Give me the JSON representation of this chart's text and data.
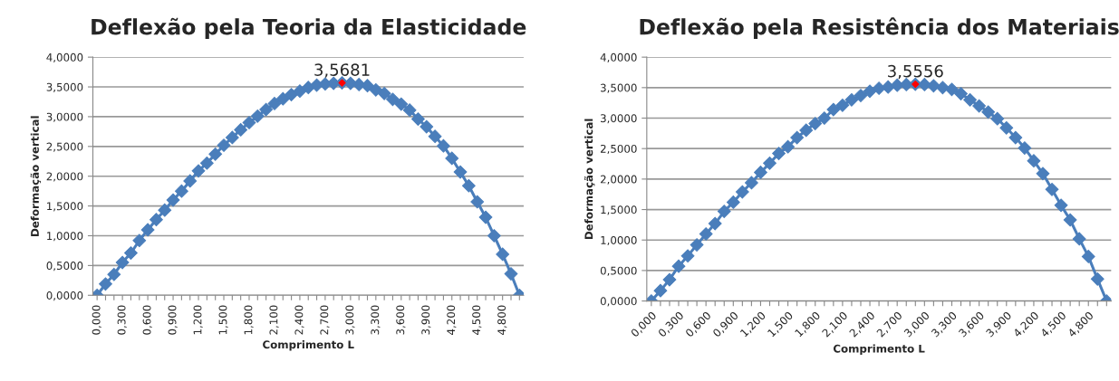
{
  "chart_data": [
    {
      "type": "line",
      "title": "Deflexão pela Teoria da Elasticidade",
      "xlabel": "Comprimento L",
      "ylabel": "Deformação vertical",
      "categories": [
        "0,000",
        null,
        null,
        "0,300",
        null,
        null,
        "0,600",
        null,
        null,
        "0,900",
        null,
        null,
        "1,200",
        null,
        null,
        "1,500",
        null,
        null,
        "1,800",
        null,
        null,
        "2,100",
        null,
        null,
        "2,400",
        null,
        null,
        "2,700",
        null,
        null,
        "3,000",
        null,
        null,
        "3,300",
        null,
        null,
        "3,600",
        null,
        null,
        "3,900",
        null,
        null,
        "4,200",
        null,
        null,
        "4,500",
        null,
        null,
        "4,800",
        null,
        null
      ],
      "series": [
        {
          "color": "#4a7ebb",
          "values": [
            0,
            0.19,
            0.35,
            0.55,
            0.71,
            0.92,
            1.1,
            1.27,
            1.43,
            1.6,
            1.75,
            1.92,
            2.09,
            2.22,
            2.37,
            2.52,
            2.65,
            2.78,
            2.9,
            3.01,
            3.12,
            3.22,
            3.3,
            3.37,
            3.43,
            3.49,
            3.53,
            3.55,
            3.56,
            3.5681,
            3.56,
            3.54,
            3.52,
            3.45,
            3.39,
            3.29,
            3.21,
            3.11,
            2.96,
            2.83,
            2.67,
            2.51,
            2.3,
            2.07,
            1.84,
            1.57,
            1.31,
            1.0,
            0.69,
            0.36,
            0
          ]
        },
        {
          "type": "scatter",
          "color": "#ff0000",
          "values": [
            null,
            null,
            null,
            null,
            null,
            null,
            null,
            null,
            null,
            null,
            null,
            null,
            null,
            null,
            null,
            null,
            null,
            null,
            null,
            null,
            null,
            null,
            null,
            null,
            null,
            null,
            null,
            null,
            null,
            3.5681,
            null,
            null,
            null,
            null,
            null,
            null,
            null,
            null,
            null,
            null,
            null,
            null,
            null,
            null,
            null,
            null,
            null,
            null,
            null,
            null,
            null
          ],
          "value_labels": [
            null,
            null,
            null,
            null,
            null,
            null,
            null,
            null,
            null,
            null,
            null,
            null,
            null,
            null,
            null,
            null,
            null,
            null,
            null,
            null,
            null,
            null,
            null,
            null,
            null,
            null,
            null,
            null,
            null,
            "3,5681",
            null,
            null,
            null,
            null,
            null,
            null,
            null,
            null,
            null,
            null,
            null,
            null,
            null,
            null,
            null,
            null,
            null,
            null,
            null,
            null,
            null
          ]
        }
      ],
      "ylim": [
        0,
        4
      ],
      "yticks": [
        {
          "value": 0,
          "label": "0,0000"
        },
        {
          "value": 0.5,
          "label": "0,5000"
        },
        {
          "value": 1,
          "label": "1,0000"
        },
        {
          "value": 1.5,
          "label": "1,5000"
        },
        {
          "value": 2,
          "label": "2,0000"
        },
        {
          "value": 2.5,
          "label": "2,5000"
        },
        {
          "value": 3,
          "label": "3,0000"
        },
        {
          "value": 3.5,
          "label": "3,5000"
        },
        {
          "value": 4,
          "label": "4,0000"
        }
      ],
      "grid": "y",
      "marker": "diamond",
      "line_style": "solid"
    },
    {
      "type": "line",
      "title": "Deflexão pela Resistência dos Materiais",
      "xlabel": "Comprimento L",
      "ylabel": "Deformação vertical",
      "categories": [
        "0,000",
        null,
        null,
        "0,300",
        null,
        null,
        "0,600",
        null,
        null,
        "0,900",
        null,
        null,
        "1,200",
        null,
        null,
        "1,500",
        null,
        null,
        "1,800",
        null,
        null,
        "2,100",
        null,
        null,
        "2,400",
        null,
        null,
        "2,700",
        null,
        null,
        "3,000",
        null,
        null,
        "3,300",
        null,
        null,
        "3,600",
        null,
        null,
        "3,900",
        null,
        null,
        "4,200",
        null,
        null,
        "4,500",
        null,
        null,
        "4,800",
        null,
        null
      ],
      "series": [
        {
          "color": "#4a7ebb",
          "values": [
            0,
            0.17,
            0.35,
            0.57,
            0.74,
            0.92,
            1.1,
            1.27,
            1.47,
            1.62,
            1.79,
            1.94,
            2.11,
            2.26,
            2.42,
            2.53,
            2.68,
            2.8,
            2.91,
            3.0,
            3.14,
            3.21,
            3.3,
            3.37,
            3.44,
            3.49,
            3.51,
            3.54,
            3.55,
            3.5556,
            3.55,
            3.53,
            3.5,
            3.47,
            3.4,
            3.3,
            3.2,
            3.1,
            2.99,
            2.84,
            2.68,
            2.51,
            2.3,
            2.09,
            1.83,
            1.57,
            1.33,
            1.02,
            0.73,
            0.36,
            0
          ]
        },
        {
          "type": "scatter",
          "color": "#ff0000",
          "values": [
            null,
            null,
            null,
            null,
            null,
            null,
            null,
            null,
            null,
            null,
            null,
            null,
            null,
            null,
            null,
            null,
            null,
            null,
            null,
            null,
            null,
            null,
            null,
            null,
            null,
            null,
            null,
            null,
            null,
            3.5556,
            null,
            null,
            null,
            null,
            null,
            null,
            null,
            null,
            null,
            null,
            null,
            null,
            null,
            null,
            null,
            null,
            null,
            null,
            null,
            null,
            null
          ],
          "value_labels": [
            null,
            null,
            null,
            null,
            null,
            null,
            null,
            null,
            null,
            null,
            null,
            null,
            null,
            null,
            null,
            null,
            null,
            null,
            null,
            null,
            null,
            null,
            null,
            null,
            null,
            null,
            null,
            null,
            null,
            "3,5556",
            null,
            null,
            null,
            null,
            null,
            null,
            null,
            null,
            null,
            null,
            null,
            null,
            null,
            null,
            null,
            null,
            null,
            null,
            null,
            null,
            null
          ]
        }
      ],
      "ylim": [
        0,
        4
      ],
      "yticks": [
        {
          "value": 0,
          "label": "0,0000"
        },
        {
          "value": 0.5,
          "label": "0,5000"
        },
        {
          "value": 1,
          "label": "1,0000"
        },
        {
          "value": 1.5,
          "label": "1,5000"
        },
        {
          "value": 2,
          "label": "2,0000"
        },
        {
          "value": 2.5,
          "label": "2,5000"
        },
        {
          "value": 3,
          "label": "3,0000"
        },
        {
          "value": 3.5,
          "label": "3,5000"
        },
        {
          "value": 4,
          "label": "4,0000"
        }
      ],
      "grid": "y",
      "marker": "diamond",
      "line_style": "solid"
    }
  ]
}
